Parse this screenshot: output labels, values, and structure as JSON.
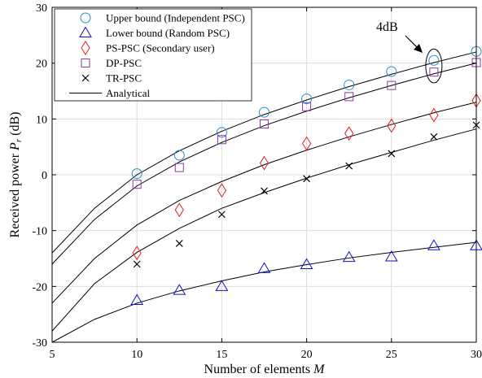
{
  "chart_data": {
    "type": "scatter",
    "xlabel": "Number of elements ",
    "xlabel_var": "M",
    "ylabel": "Received power ",
    "ylabel_var": "P",
    "ylabel_sub": "r",
    "ylabel_unit": " (dB)",
    "xlim": [
      5,
      30
    ],
    "ylim": [
      -30,
      30
    ],
    "xticks": [
      5,
      10,
      15,
      20,
      25,
      30
    ],
    "yticks": [
      -30,
      -20,
      -10,
      0,
      10,
      20,
      30
    ],
    "grid": true,
    "legend_position": "top-left",
    "annotation": {
      "text": "4dB",
      "at_x": 27.5,
      "y_range": [
        18.5,
        20.5
      ]
    },
    "series": [
      {
        "name": "Upper bound (Independent PSC)",
        "marker": "circle",
        "color": "#2b8cc4",
        "x": [
          10,
          12.5,
          15,
          17.5,
          20,
          22.5,
          25,
          27.5,
          30
        ],
        "y": [
          0.2,
          3.5,
          7.6,
          11.2,
          13.6,
          16.1,
          18.5,
          20.5,
          22.1
        ]
      },
      {
        "name": "Lower bound (Random PSC)",
        "marker": "triangle",
        "color": "#1010c8",
        "x": [
          10,
          12.5,
          15,
          17.5,
          20,
          22.5,
          25,
          27.5,
          30
        ],
        "y": [
          -22.5,
          -20.7,
          -20.0,
          -16.8,
          -16.1,
          -14.8,
          -14.7,
          -12.7,
          -12.7
        ]
      },
      {
        "name": "PS-PSC (Secondary user)",
        "marker": "diamond",
        "color": "#e02020",
        "x": [
          10,
          12.5,
          15,
          17.5,
          20,
          22.5,
          25,
          27.5,
          30
        ],
        "y": [
          -14.0,
          -6.3,
          -2.8,
          2.1,
          5.6,
          7.4,
          8.8,
          10.7,
          13.3
        ]
      },
      {
        "name": "DP-PSC",
        "marker": "square",
        "color": "#8a3aa0",
        "x": [
          10,
          12.5,
          15,
          17.5,
          20,
          22.5,
          25,
          27.5,
          30
        ],
        "y": [
          -1.7,
          1.3,
          6.3,
          9.1,
          12.2,
          14.0,
          16.0,
          18.4,
          20.1
        ]
      },
      {
        "name": "TR-PSC",
        "marker": "x",
        "color": "#000000",
        "x": [
          10,
          12.5,
          15,
          17.5,
          20,
          22.5,
          25,
          27.5,
          30
        ],
        "y": [
          -16.0,
          -12.3,
          -7.1,
          -2.9,
          -0.7,
          1.6,
          3.8,
          6.8,
          8.9
        ]
      }
    ],
    "analytical": {
      "name": "Analytical",
      "x": [
        5,
        7.5,
        10,
        12.5,
        15,
        17.5,
        20,
        22.5,
        25,
        27.5,
        30
      ],
      "curves": [
        [
          -14.0,
          -6.0,
          0.0,
          4.3,
          7.8,
          10.8,
          13.4,
          15.8,
          18.0,
          20.1,
          22.0
        ],
        [
          -16.0,
          -8.0,
          -2.0,
          2.3,
          5.8,
          8.8,
          11.4,
          13.8,
          16.0,
          18.1,
          20.0
        ],
        [
          -23.0,
          -15.0,
          -9.0,
          -4.6,
          -1.2,
          1.8,
          4.4,
          6.8,
          9.0,
          11.1,
          13.0
        ],
        [
          -28.0,
          -19.5,
          -13.9,
          -9.6,
          -6.0,
          -3.2,
          -0.6,
          1.8,
          4.0,
          6.2,
          8.2
        ],
        [
          -30.0,
          -25.9,
          -23.0,
          -20.8,
          -19.0,
          -17.4,
          -16.1,
          -14.9,
          -13.9,
          -13.0,
          -12.1
        ]
      ]
    }
  }
}
